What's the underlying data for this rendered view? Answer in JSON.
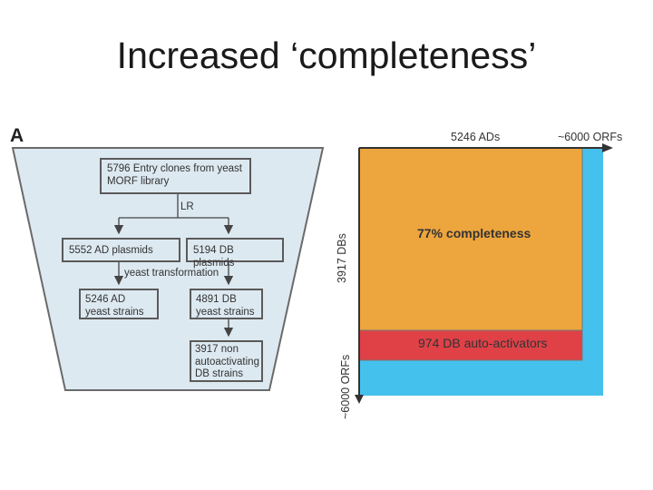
{
  "title": "Increased ‘completeness’",
  "panel_label": "A",
  "flow": {
    "entry": "5796 Entry clones from yeast MORF library",
    "lr": "LR",
    "ad_plasmids": "5552 AD plasmids",
    "db_plasmids": "5194 DB plasmids",
    "transformation": "yeast transformation",
    "ad_strains": "5246 AD yeast strains",
    "db_strains": "4891 DB yeast strains",
    "non_auto": "3917 non autoactivating DB strains"
  },
  "matrix": {
    "ads_label": "5246 ADs",
    "orfs_top": "~6000 ORFs",
    "dbs_label": "3917 DBs",
    "orfs_left": "~6000 ORFs",
    "completeness": "77% completeness",
    "auto_activators": "974 DB auto-activators",
    "colors": {
      "blue": "#45c1ee",
      "orange": "#eda53d",
      "red": "#df4147"
    }
  }
}
